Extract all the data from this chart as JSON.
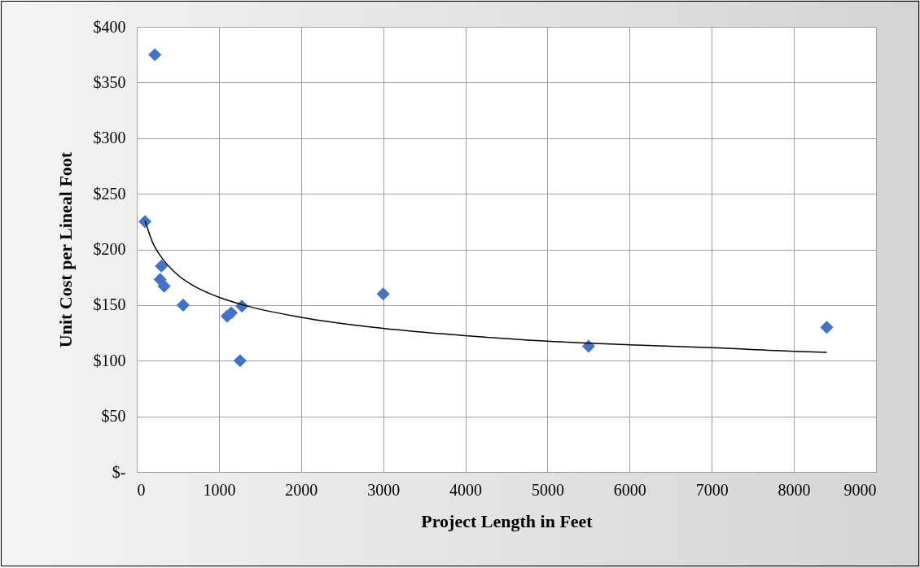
{
  "chart_data": {
    "type": "scatter",
    "xlabel": "Project Length in Feet",
    "ylabel": "Unit Cost per Lineal Foot",
    "xlim": [
      0,
      9000
    ],
    "xticks": [
      0,
      1000,
      2000,
      3000,
      4000,
      5000,
      6000,
      7000,
      8000,
      9000
    ],
    "ylim": [
      0,
      400
    ],
    "yticks": [
      {
        "value": 0,
        "label": "$-"
      },
      {
        "value": 50,
        "label": "$50"
      },
      {
        "value": 100,
        "label": "$100"
      },
      {
        "value": 150,
        "label": "$150"
      },
      {
        "value": 200,
        "label": "$200"
      },
      {
        "value": 250,
        "label": "$250"
      },
      {
        "value": 300,
        "label": "$300"
      },
      {
        "value": 350,
        "label": "$350"
      },
      {
        "value": 400,
        "label": "$400"
      }
    ],
    "grid": true,
    "series": [
      {
        "marker": "diamond",
        "color": "#4472c4",
        "x": [
          220,
          100,
          300,
          284,
          333,
          564,
          1100,
          1150,
          1280,
          1257,
          3000,
          5500,
          8400
        ],
        "values": [
          375,
          225,
          185,
          173,
          167,
          150,
          140,
          143,
          149,
          100,
          160,
          113,
          130
        ]
      },
      {
        "type": "line",
        "marker": "none",
        "line_style": "solid",
        "color": "#000000",
        "x": [
          100,
          200,
          300,
          500,
          700,
          1000,
          1300,
          2000,
          3000,
          4000,
          5000,
          6000,
          7000,
          8000,
          8400
        ],
        "values": [
          226,
          205,
          193,
          177,
          167,
          157,
          150,
          139,
          129,
          122.5,
          117.5,
          114.3,
          111.7,
          108.4,
          107.5
        ]
      }
    ]
  }
}
